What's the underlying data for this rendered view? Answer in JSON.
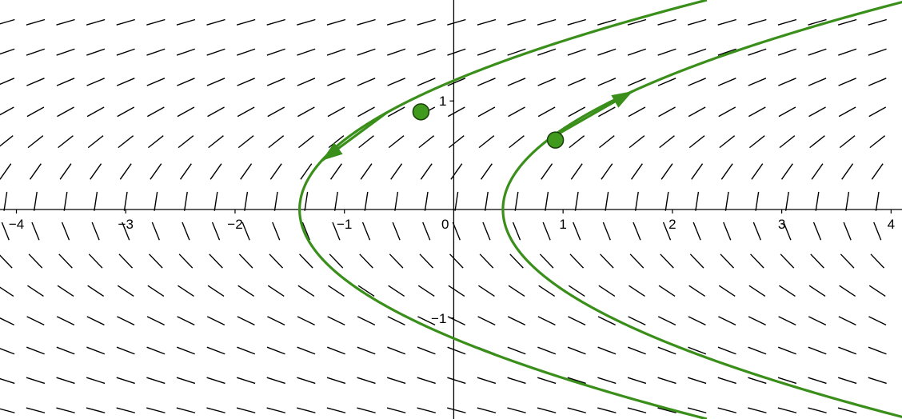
{
  "chart_data": {
    "type": "direction-field",
    "slope_field": "y' = 1/(2y)",
    "xlim": [
      -4.15,
      4.1
    ],
    "ylim": [
      -1.93,
      1.93
    ],
    "x_ticks": [
      {
        "value": -4,
        "label": "−4"
      },
      {
        "value": -3,
        "label": "−3"
      },
      {
        "value": -2,
        "label": "−2"
      },
      {
        "value": -1,
        "label": "−1"
      },
      {
        "value": 0,
        "label": "0"
      },
      {
        "value": 1,
        "label": "1"
      },
      {
        "value": 2,
        "label": "2"
      },
      {
        "value": 3,
        "label": "3"
      },
      {
        "value": 4,
        "label": "4"
      }
    ],
    "y_ticks": [
      {
        "value": 1,
        "label": "1"
      },
      {
        "value": -1,
        "label": "−1"
      }
    ],
    "field_grid": {
      "x_start": -4.1,
      "x_step": 0.275,
      "y_start": -1.85,
      "y_step": 0.275
    },
    "solutions": [
      {
        "name": "",
        "x0": -1.41,
        "points": [
          {
            "x": -0.3,
            "y": 0.9
          }
        ]
      },
      {
        "name": "",
        "x0": 0.45,
        "points": [
          {
            "x": 0.93,
            "y": 0.64
          }
        ]
      }
    ],
    "colors": {
      "curve": "#3a8f1a",
      "point_fill": "#3f9a1e",
      "point_stroke": "#1a3d0c",
      "field": "#000000",
      "axis": "#000000"
    }
  }
}
